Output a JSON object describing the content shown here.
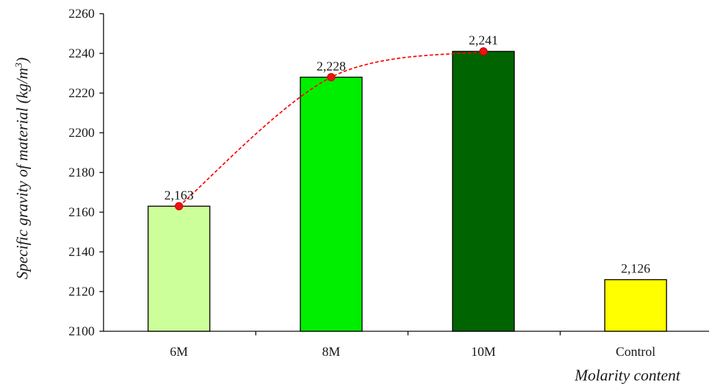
{
  "chart_data": {
    "type": "bar",
    "categories": [
      "6M",
      "8M",
      "10M",
      "Control"
    ],
    "values": [
      2163,
      2228,
      2241,
      2126
    ],
    "data_labels": [
      "2,163",
      "2,228",
      "2,241",
      "2,126"
    ],
    "bar_colors": [
      "#ccff99",
      "#00ee00",
      "#006400",
      "#ffff00"
    ],
    "xlabel": "Molarity content",
    "ylabel_main": "Specific gravity of material (kg/m",
    "ylabel_sup": "3",
    "ylabel_end": ")",
    "ylim": [
      2100,
      2260
    ],
    "yticks": [
      2100,
      2120,
      2140,
      2160,
      2180,
      2200,
      2220,
      2240,
      2260
    ],
    "trend_line": {
      "points_from_categories": [
        "6M",
        "8M",
        "10M"
      ],
      "style": "dashed",
      "color": "#ff0000",
      "marker_color": "#ee1111"
    },
    "grid": false,
    "legend": "none"
  }
}
